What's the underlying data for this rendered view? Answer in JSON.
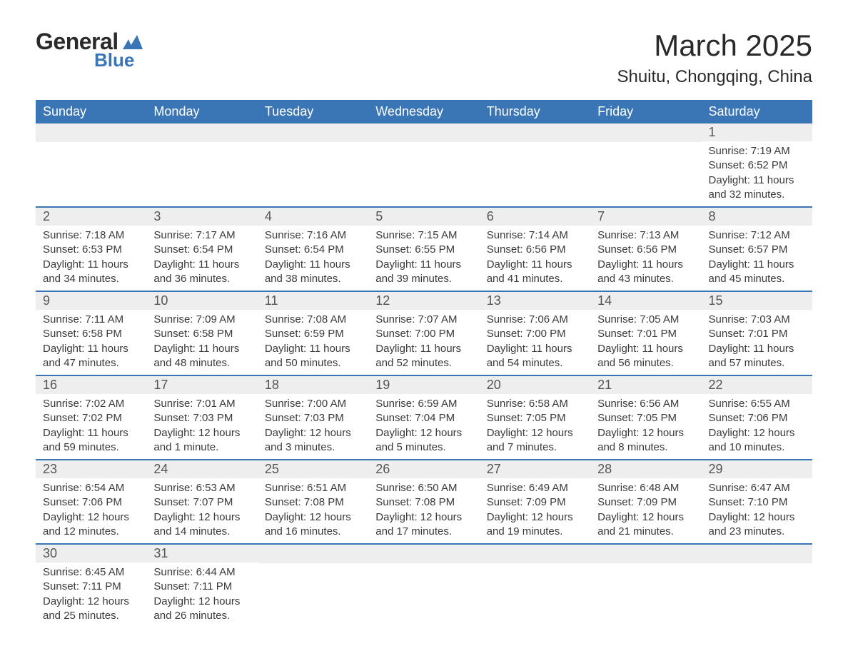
{
  "brand": {
    "word1": "General",
    "word2": "Blue",
    "text_color": "#2a2a2a",
    "accent_color": "#3a76b5"
  },
  "header": {
    "title": "March 2025",
    "location": "Shuitu, Chongqing, China"
  },
  "styling": {
    "header_bg": "#3a76b5",
    "header_fg": "#ffffff",
    "row_border_color": "#3a76b5",
    "daynum_bg": "#eeeeee",
    "daynum_fg": "#555555",
    "body_fg": "#3a3a3a",
    "page_bg": "#ffffff",
    "th_fontsize": 18,
    "title_fontsize": 42,
    "location_fontsize": 24,
    "body_fontsize": 15
  },
  "weekdays": [
    "Sunday",
    "Monday",
    "Tuesday",
    "Wednesday",
    "Thursday",
    "Friday",
    "Saturday"
  ],
  "weeks": [
    [
      {
        "empty": true
      },
      {
        "empty": true
      },
      {
        "empty": true
      },
      {
        "empty": true
      },
      {
        "empty": true
      },
      {
        "empty": true
      },
      {
        "day": "1",
        "sunrise": "Sunrise: 7:19 AM",
        "sunset": "Sunset: 6:52 PM",
        "daylight1": "Daylight: 11 hours",
        "daylight2": "and 32 minutes."
      }
    ],
    [
      {
        "day": "2",
        "sunrise": "Sunrise: 7:18 AM",
        "sunset": "Sunset: 6:53 PM",
        "daylight1": "Daylight: 11 hours",
        "daylight2": "and 34 minutes."
      },
      {
        "day": "3",
        "sunrise": "Sunrise: 7:17 AM",
        "sunset": "Sunset: 6:54 PM",
        "daylight1": "Daylight: 11 hours",
        "daylight2": "and 36 minutes."
      },
      {
        "day": "4",
        "sunrise": "Sunrise: 7:16 AM",
        "sunset": "Sunset: 6:54 PM",
        "daylight1": "Daylight: 11 hours",
        "daylight2": "and 38 minutes."
      },
      {
        "day": "5",
        "sunrise": "Sunrise: 7:15 AM",
        "sunset": "Sunset: 6:55 PM",
        "daylight1": "Daylight: 11 hours",
        "daylight2": "and 39 minutes."
      },
      {
        "day": "6",
        "sunrise": "Sunrise: 7:14 AM",
        "sunset": "Sunset: 6:56 PM",
        "daylight1": "Daylight: 11 hours",
        "daylight2": "and 41 minutes."
      },
      {
        "day": "7",
        "sunrise": "Sunrise: 7:13 AM",
        "sunset": "Sunset: 6:56 PM",
        "daylight1": "Daylight: 11 hours",
        "daylight2": "and 43 minutes."
      },
      {
        "day": "8",
        "sunrise": "Sunrise: 7:12 AM",
        "sunset": "Sunset: 6:57 PM",
        "daylight1": "Daylight: 11 hours",
        "daylight2": "and 45 minutes."
      }
    ],
    [
      {
        "day": "9",
        "sunrise": "Sunrise: 7:11 AM",
        "sunset": "Sunset: 6:58 PM",
        "daylight1": "Daylight: 11 hours",
        "daylight2": "and 47 minutes."
      },
      {
        "day": "10",
        "sunrise": "Sunrise: 7:09 AM",
        "sunset": "Sunset: 6:58 PM",
        "daylight1": "Daylight: 11 hours",
        "daylight2": "and 48 minutes."
      },
      {
        "day": "11",
        "sunrise": "Sunrise: 7:08 AM",
        "sunset": "Sunset: 6:59 PM",
        "daylight1": "Daylight: 11 hours",
        "daylight2": "and 50 minutes."
      },
      {
        "day": "12",
        "sunrise": "Sunrise: 7:07 AM",
        "sunset": "Sunset: 7:00 PM",
        "daylight1": "Daylight: 11 hours",
        "daylight2": "and 52 minutes."
      },
      {
        "day": "13",
        "sunrise": "Sunrise: 7:06 AM",
        "sunset": "Sunset: 7:00 PM",
        "daylight1": "Daylight: 11 hours",
        "daylight2": "and 54 minutes."
      },
      {
        "day": "14",
        "sunrise": "Sunrise: 7:05 AM",
        "sunset": "Sunset: 7:01 PM",
        "daylight1": "Daylight: 11 hours",
        "daylight2": "and 56 minutes."
      },
      {
        "day": "15",
        "sunrise": "Sunrise: 7:03 AM",
        "sunset": "Sunset: 7:01 PM",
        "daylight1": "Daylight: 11 hours",
        "daylight2": "and 57 minutes."
      }
    ],
    [
      {
        "day": "16",
        "sunrise": "Sunrise: 7:02 AM",
        "sunset": "Sunset: 7:02 PM",
        "daylight1": "Daylight: 11 hours",
        "daylight2": "and 59 minutes."
      },
      {
        "day": "17",
        "sunrise": "Sunrise: 7:01 AM",
        "sunset": "Sunset: 7:03 PM",
        "daylight1": "Daylight: 12 hours",
        "daylight2": "and 1 minute."
      },
      {
        "day": "18",
        "sunrise": "Sunrise: 7:00 AM",
        "sunset": "Sunset: 7:03 PM",
        "daylight1": "Daylight: 12 hours",
        "daylight2": "and 3 minutes."
      },
      {
        "day": "19",
        "sunrise": "Sunrise: 6:59 AM",
        "sunset": "Sunset: 7:04 PM",
        "daylight1": "Daylight: 12 hours",
        "daylight2": "and 5 minutes."
      },
      {
        "day": "20",
        "sunrise": "Sunrise: 6:58 AM",
        "sunset": "Sunset: 7:05 PM",
        "daylight1": "Daylight: 12 hours",
        "daylight2": "and 7 minutes."
      },
      {
        "day": "21",
        "sunrise": "Sunrise: 6:56 AM",
        "sunset": "Sunset: 7:05 PM",
        "daylight1": "Daylight: 12 hours",
        "daylight2": "and 8 minutes."
      },
      {
        "day": "22",
        "sunrise": "Sunrise: 6:55 AM",
        "sunset": "Sunset: 7:06 PM",
        "daylight1": "Daylight: 12 hours",
        "daylight2": "and 10 minutes."
      }
    ],
    [
      {
        "day": "23",
        "sunrise": "Sunrise: 6:54 AM",
        "sunset": "Sunset: 7:06 PM",
        "daylight1": "Daylight: 12 hours",
        "daylight2": "and 12 minutes."
      },
      {
        "day": "24",
        "sunrise": "Sunrise: 6:53 AM",
        "sunset": "Sunset: 7:07 PM",
        "daylight1": "Daylight: 12 hours",
        "daylight2": "and 14 minutes."
      },
      {
        "day": "25",
        "sunrise": "Sunrise: 6:51 AM",
        "sunset": "Sunset: 7:08 PM",
        "daylight1": "Daylight: 12 hours",
        "daylight2": "and 16 minutes."
      },
      {
        "day": "26",
        "sunrise": "Sunrise: 6:50 AM",
        "sunset": "Sunset: 7:08 PM",
        "daylight1": "Daylight: 12 hours",
        "daylight2": "and 17 minutes."
      },
      {
        "day": "27",
        "sunrise": "Sunrise: 6:49 AM",
        "sunset": "Sunset: 7:09 PM",
        "daylight1": "Daylight: 12 hours",
        "daylight2": "and 19 minutes."
      },
      {
        "day": "28",
        "sunrise": "Sunrise: 6:48 AM",
        "sunset": "Sunset: 7:09 PM",
        "daylight1": "Daylight: 12 hours",
        "daylight2": "and 21 minutes."
      },
      {
        "day": "29",
        "sunrise": "Sunrise: 6:47 AM",
        "sunset": "Sunset: 7:10 PM",
        "daylight1": "Daylight: 12 hours",
        "daylight2": "and 23 minutes."
      }
    ],
    [
      {
        "day": "30",
        "sunrise": "Sunrise: 6:45 AM",
        "sunset": "Sunset: 7:11 PM",
        "daylight1": "Daylight: 12 hours",
        "daylight2": "and 25 minutes."
      },
      {
        "day": "31",
        "sunrise": "Sunrise: 6:44 AM",
        "sunset": "Sunset: 7:11 PM",
        "daylight1": "Daylight: 12 hours",
        "daylight2": "and 26 minutes."
      },
      {
        "empty": true
      },
      {
        "empty": true
      },
      {
        "empty": true
      },
      {
        "empty": true
      },
      {
        "empty": true
      }
    ]
  ]
}
